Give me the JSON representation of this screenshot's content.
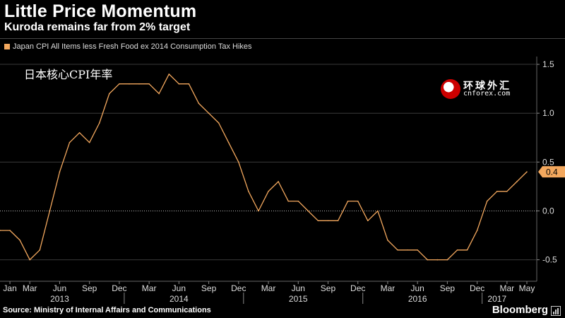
{
  "header": {
    "title": "Little Price Momentum",
    "subtitle": "Kuroda remains far from 2% target"
  },
  "legend": {
    "label": "Japan CPI All Items less Fresh Food ex 2014 Consumption Tax Hikes"
  },
  "annotation": "日本核心CPI年率",
  "watermark": {
    "chinese": "环球外汇",
    "english": "cnforex.com"
  },
  "footer": {
    "source": "Source: Ministry of Internal Affairs and Communications",
    "brand": "Bloomberg"
  },
  "colors": {
    "series": "#f3a85e",
    "background": "#000000",
    "grid": "#3a3a3a",
    "zero_line": "#bbbbbb"
  },
  "chart_data": {
    "type": "line",
    "series": [
      {
        "name": "Japan CPI All Items less Fresh Food ex 2014 Consumption Tax Hikes",
        "x": [
          "2012-12",
          "2013-01",
          "2013-02",
          "2013-03",
          "2013-04",
          "2013-05",
          "2013-06",
          "2013-07",
          "2013-08",
          "2013-09",
          "2013-10",
          "2013-11",
          "2013-12",
          "2014-01",
          "2014-02",
          "2014-03",
          "2014-04",
          "2014-05",
          "2014-06",
          "2014-07",
          "2014-08",
          "2014-09",
          "2014-10",
          "2014-11",
          "2014-12",
          "2015-01",
          "2015-02",
          "2015-03",
          "2015-04",
          "2015-05",
          "2015-06",
          "2015-07",
          "2015-08",
          "2015-09",
          "2015-10",
          "2015-11",
          "2015-12",
          "2016-01",
          "2016-02",
          "2016-03",
          "2016-04",
          "2016-05",
          "2016-06",
          "2016-07",
          "2016-08",
          "2016-09",
          "2016-10",
          "2016-11",
          "2016-12",
          "2017-01",
          "2017-02",
          "2017-03",
          "2017-04",
          "2017-05"
        ],
        "values": [
          -0.2,
          -0.2,
          -0.3,
          -0.5,
          -0.4,
          0.0,
          0.4,
          0.7,
          0.8,
          0.7,
          0.9,
          1.2,
          1.3,
          1.3,
          1.3,
          1.3,
          1.2,
          1.4,
          1.3,
          1.3,
          1.1,
          1.0,
          0.9,
          0.7,
          0.5,
          0.2,
          0.0,
          0.2,
          0.3,
          0.1,
          0.1,
          0.0,
          -0.1,
          -0.1,
          -0.1,
          0.1,
          0.1,
          -0.1,
          0.0,
          -0.3,
          -0.4,
          -0.4,
          -0.4,
          -0.5,
          -0.5,
          -0.5,
          -0.4,
          -0.4,
          -0.2,
          0.1,
          0.2,
          0.2,
          0.3,
          0.4
        ]
      }
    ],
    "last_value_label": "0.4",
    "yticks": [
      "1.5",
      "1.0",
      "0.5",
      "0.0",
      "-0.5"
    ],
    "ytick_values": [
      1.5,
      1.0,
      0.5,
      0.0,
      -0.5
    ],
    "ylim": [
      -0.72,
      1.58
    ],
    "xlim": [
      "2012-12",
      "2017-05"
    ],
    "x_month_labels": [
      {
        "label": "Jan",
        "month": "2013-01"
      },
      {
        "label": "Mar",
        "month": "2013-03"
      },
      {
        "label": "Jun",
        "month": "2013-06"
      },
      {
        "label": "Sep",
        "month": "2013-09"
      },
      {
        "label": "Dec",
        "month": "2013-12"
      },
      {
        "label": "Mar",
        "month": "2014-03"
      },
      {
        "label": "Jun",
        "month": "2014-06"
      },
      {
        "label": "Sep",
        "month": "2014-09"
      },
      {
        "label": "Dec",
        "month": "2014-12"
      },
      {
        "label": "Mar",
        "month": "2015-03"
      },
      {
        "label": "Jun",
        "month": "2015-06"
      },
      {
        "label": "Sep",
        "month": "2015-09"
      },
      {
        "label": "Dec",
        "month": "2015-12"
      },
      {
        "label": "Mar",
        "month": "2016-03"
      },
      {
        "label": "Jun",
        "month": "2016-06"
      },
      {
        "label": "Sep",
        "month": "2016-09"
      },
      {
        "label": "Dec",
        "month": "2016-12"
      },
      {
        "label": "Mar",
        "month": "2017-03"
      },
      {
        "label": "May",
        "month": "2017-05"
      }
    ],
    "x_year_labels": [
      {
        "label": "2013",
        "month": "2013-06"
      },
      {
        "label": "2014",
        "month": "2014-06"
      },
      {
        "label": "2015",
        "month": "2015-06"
      },
      {
        "label": "2016",
        "month": "2016-06"
      },
      {
        "label": "2017",
        "month": "2017-02"
      }
    ],
    "year_boundaries": [
      "2013-12",
      "2014-12",
      "2015-12",
      "2016-12"
    ],
    "grid": true,
    "legend_position": "top-left"
  }
}
